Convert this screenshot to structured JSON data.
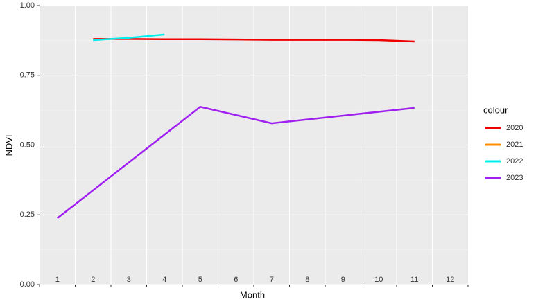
{
  "chart_data": {
    "type": "line",
    "x_label": "Month",
    "y_label": "NDVI",
    "legend_title": "colour",
    "categories": [
      "1",
      "2",
      "3",
      "4",
      "5",
      "6",
      "7",
      "8",
      "9",
      "10",
      "11",
      "12"
    ],
    "xlim": [
      0.5,
      12.5
    ],
    "ylim": [
      0,
      1
    ],
    "yticks": [
      {
        "value": 0,
        "label": "0.00"
      },
      {
        "value": 0.25,
        "label": "0.25"
      },
      {
        "value": 0.5,
        "label": "0.50"
      },
      {
        "value": 0.75,
        "label": "0.75"
      },
      {
        "value": 1,
        "label": "1.00"
      }
    ],
    "grid": true,
    "series": [
      {
        "name": "2020",
        "color": "#ee0000",
        "x": [
          2,
          3,
          4,
          5,
          6,
          7,
          8,
          9,
          10,
          11
        ],
        "values": [
          0.88,
          0.88,
          0.879,
          0.879,
          0.878,
          0.877,
          0.877,
          0.877,
          0.876,
          0.871
        ]
      },
      {
        "name": "2021",
        "color": "#ff8c00",
        "x": [],
        "values": []
      },
      {
        "name": "2022",
        "color": "#00eeee",
        "x": [
          2,
          3,
          4
        ],
        "values": [
          0.876,
          0.884,
          0.896
        ]
      },
      {
        "name": "2023",
        "color": "#a020f0",
        "x": [
          1,
          5,
          7,
          11
        ],
        "values": [
          0.238,
          0.637,
          0.578,
          0.633
        ]
      }
    ]
  }
}
